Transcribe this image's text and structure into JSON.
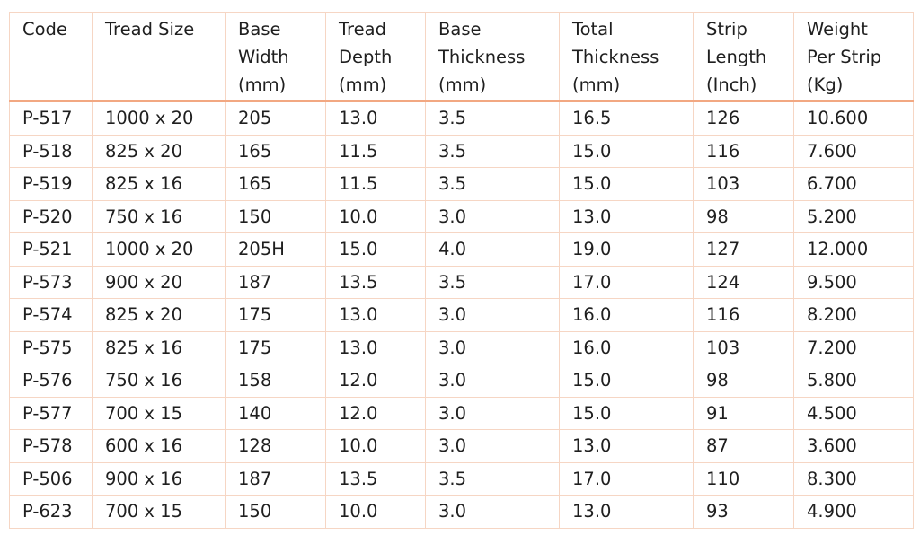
{
  "table": {
    "columns": [
      {
        "lines": [
          "Code"
        ]
      },
      {
        "lines": [
          "Tread Size"
        ]
      },
      {
        "lines": [
          "Base",
          "Width",
          "(mm)"
        ]
      },
      {
        "lines": [
          "Tread",
          "Depth",
          "(mm)"
        ]
      },
      {
        "lines": [
          "Base",
          "Thickness",
          "(mm)"
        ]
      },
      {
        "lines": [
          "Total",
          "Thickness",
          "(mm)"
        ]
      },
      {
        "lines": [
          "Strip",
          "Length",
          "(Inch)"
        ]
      },
      {
        "lines": [
          "Weight",
          "Per Strip",
          "(Kg)"
        ]
      }
    ],
    "rows": [
      [
        "P-517",
        "1000 x 20",
        "205",
        "13.0",
        "3.5",
        "16.5",
        "126",
        "10.600"
      ],
      [
        "P-518",
        "825 x 20",
        "165",
        "11.5",
        "3.5",
        "15.0",
        "116",
        "7.600"
      ],
      [
        "P-519",
        "825 x 16",
        "165",
        "11.5",
        "3.5",
        "15.0",
        "103",
        "6.700"
      ],
      [
        "P-520",
        "750 x 16",
        "150",
        "10.0",
        "3.0",
        "13.0",
        "98",
        "5.200"
      ],
      [
        "P-521",
        "1000 x 20",
        "205H",
        "15.0",
        "4.0",
        "19.0",
        "127",
        "12.000"
      ],
      [
        "P-573",
        "900 x 20",
        "187",
        "13.5",
        "3.5",
        "17.0",
        "124",
        "9.500"
      ],
      [
        "P-574",
        "825 x 20",
        "175",
        "13.0",
        "3.0",
        "16.0",
        "116",
        "8.200"
      ],
      [
        "P-575",
        "825 x 16",
        "175",
        "13.0",
        "3.0",
        "16.0",
        "103",
        "7.200"
      ],
      [
        "P-576",
        "750 x 16",
        "158",
        "12.0",
        "3.0",
        "15.0",
        "98",
        "5.800"
      ],
      [
        "P-577",
        "700 x 15",
        "140",
        "12.0",
        "3.0",
        "15.0",
        "91",
        "4.500"
      ],
      [
        "P-578",
        "600 x 16",
        "128",
        "10.0",
        "3.0",
        "13.0",
        "87",
        "3.600"
      ],
      [
        "P-506",
        "900 x 16",
        "187",
        "13.5",
        "3.5",
        "17.0",
        "110",
        "8.300"
      ],
      [
        "P-623",
        "700 x 15",
        "150",
        "10.0",
        "3.0",
        "13.0",
        "93",
        "4.900"
      ]
    ]
  },
  "colors": {
    "border": "#f6d6c4",
    "header_rule": "#f2a882",
    "text": "#1f1f1f"
  }
}
